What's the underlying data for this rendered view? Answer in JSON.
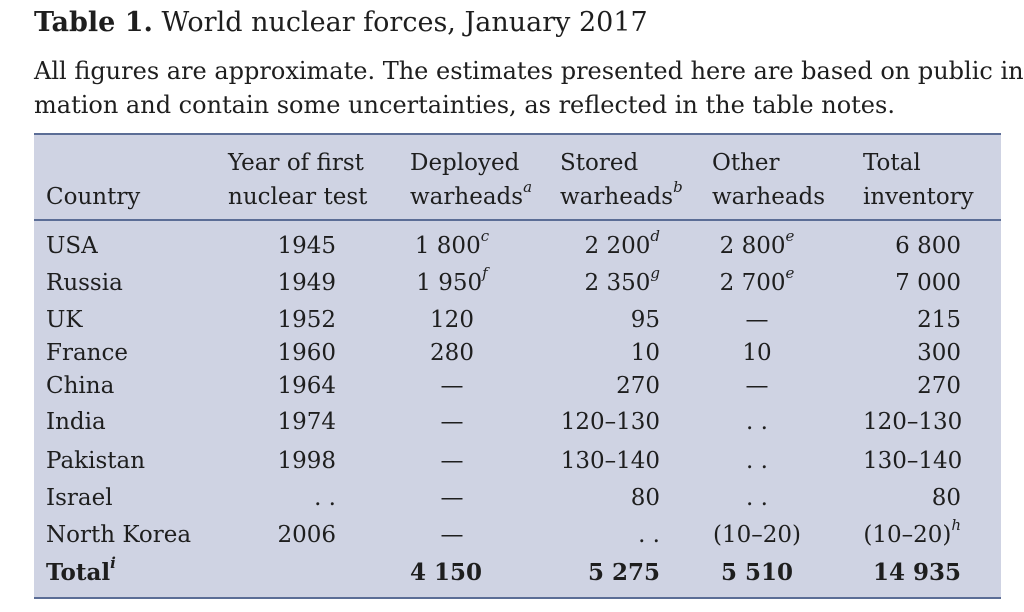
{
  "caption": {
    "label": "Table 1.",
    "title": "World nuclear forces, January 2017"
  },
  "subtitle": {
    "line1": "All figures are approximate. The estimates presented here are based on public infor-",
    "line2": "mation and contain some uncertainties, as reflected in the table notes."
  },
  "headers": {
    "country": "Country",
    "year_1": "Year of first",
    "year_2": "nuclear test",
    "deployed_1": "Deployed",
    "deployed_2": "warheads",
    "deployed_note": "a",
    "stored_1": "Stored",
    "stored_2": "warheads",
    "stored_note": "b",
    "other_1": "Other",
    "other_2": "warheads",
    "total_1": "Total",
    "total_2": "inventory"
  },
  "rows": [
    {
      "country": "USA",
      "year": "1945",
      "deployed": "1 800",
      "deployed_note": "c",
      "stored": "2 200",
      "stored_note": "d",
      "other": "2 800",
      "other_note": "e",
      "total": "6 800",
      "total_note": ""
    },
    {
      "country": "Russia",
      "year": "1949",
      "deployed": "1 950",
      "deployed_note": "f",
      "stored": "2 350",
      "stored_note": "g",
      "other": "2 700",
      "other_note": "e",
      "total": "7 000",
      "total_note": ""
    },
    {
      "country": "UK",
      "year": "1952",
      "deployed": "120",
      "deployed_note": "",
      "stored": "95",
      "stored_note": "",
      "other": "—",
      "other_note": "",
      "total": "215",
      "total_note": ""
    },
    {
      "country": "France",
      "year": "1960",
      "deployed": "280",
      "deployed_note": "",
      "stored": "10",
      "stored_note": "",
      "other": "10",
      "other_note": "",
      "total": "300",
      "total_note": ""
    },
    {
      "country": "China",
      "year": "1964",
      "deployed": "—",
      "deployed_note": "",
      "stored": "270",
      "stored_note": "",
      "other": "—",
      "other_note": "",
      "total": "270",
      "total_note": ""
    },
    {
      "country": "India",
      "year": "1974",
      "deployed": "—",
      "deployed_note": "",
      "stored": "120–130",
      "stored_note": "",
      "other": ". .",
      "other_note": "",
      "total": "120–130",
      "total_note": ""
    },
    {
      "country": "Pakistan",
      "year": "1998",
      "deployed": "—",
      "deployed_note": "",
      "stored": "130–140",
      "stored_note": "",
      "other": ". .",
      "other_note": "",
      "total": "130–140",
      "total_note": ""
    },
    {
      "country": "Israel",
      "year": ". .",
      "deployed": "—",
      "deployed_note": "",
      "stored": "80",
      "stored_note": "",
      "other": ". .",
      "other_note": "",
      "total": "80",
      "total_note": ""
    },
    {
      "country": "North Korea",
      "year": "2006",
      "deployed": "—",
      "deployed_note": "",
      "stored": ". .",
      "stored_note": "",
      "other": "(10–20)",
      "other_note": "",
      "total": "(10–20)",
      "total_note": "h"
    }
  ],
  "total_row": {
    "label": "Total",
    "label_note": "i",
    "deployed": "4 150",
    "stored": "5 275",
    "other": "5 510",
    "total": "14 935"
  }
}
